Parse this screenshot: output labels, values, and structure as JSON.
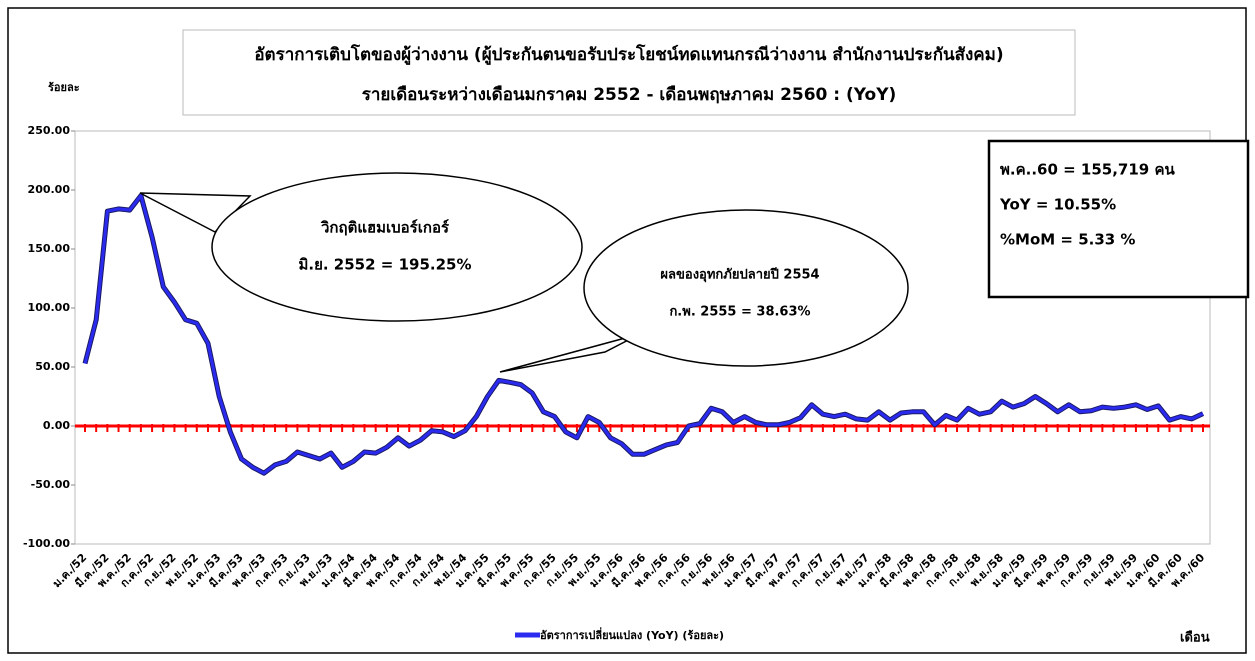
{
  "chart_data": {
    "type": "line",
    "title_lines": [
      "อัตราการเติบโตของผู้ว่างงาน (ผู้ประกันตนขอรับประโยชน์ทดแทนกรณีว่างงาน สำนักงานประกันสังคม)",
      "รายเดือนระหว่างเดือนมกราคม 2552 - เดือนพฤษภาคม 2560 : (YoY)"
    ],
    "y_label": "ร้อยละ",
    "x_label": "เดือน",
    "categories": [
      "ม.ค./52",
      null,
      "มี.ค./52",
      null,
      "พ.ค./52",
      null,
      "ก.ค./52",
      null,
      "ก.ย./52",
      null,
      "พ.ย./52",
      null,
      "ม.ค./53",
      null,
      "มี.ค./53",
      null,
      "พ.ค./53",
      null,
      "ก.ค./53",
      null,
      "ก.ย./53",
      null,
      "พ.ย./53",
      null,
      "ม.ค./54",
      null,
      "มี.ค./54",
      null,
      "พ.ค./54",
      null,
      "ก.ค./54",
      null,
      "ก.ย./54",
      null,
      "พ.ย./54",
      null,
      "ม.ค./55",
      null,
      "มี.ค./55",
      null,
      "พ.ค./55",
      null,
      "ก.ค./55",
      null,
      "ก.ย./55",
      null,
      "พ.ย./55",
      null,
      "ม.ค./56",
      null,
      "มี.ค./56",
      null,
      "พ.ค./56",
      null,
      "ก.ค./56",
      null,
      "ก.ย./56",
      null,
      "พ.ย./56",
      null,
      "ม.ค./57",
      null,
      "มี.ค./57",
      null,
      "พ.ค./57",
      null,
      "ก.ค./57",
      null,
      "ก.ย./57",
      null,
      "พ.ย./57",
      null,
      "ม.ค./58",
      null,
      "มี.ค./58",
      null,
      "พ.ค./58",
      null,
      "ก.ค./58",
      null,
      "ก.ย./58",
      null,
      "พ.ย./58",
      null,
      "ม.ค./59",
      null,
      "มี.ค./59",
      null,
      "พ.ค./59",
      null,
      "ก.ค./59",
      null,
      "ก.ย./59",
      null,
      "พ.ย./59",
      null,
      "ม.ค./60",
      null,
      "มี.ค./60",
      null,
      "พ.ค./60"
    ],
    "series": [
      {
        "name": "อัตราการเปลี่ยนแปลง (YoY) (ร้อยละ)",
        "color": "#2b2bf0",
        "values": [
          53,
          90,
          182,
          184,
          183,
          195.25,
          160,
          118,
          105,
          90,
          87,
          70,
          25,
          -5,
          -28,
          -35,
          -40,
          -33,
          -30,
          -22,
          -25,
          -28,
          -23,
          -35,
          -30,
          -22,
          -23,
          -18,
          -10,
          -17,
          -12,
          -4,
          -5,
          -9,
          -4,
          8,
          25,
          38.63,
          37,
          35,
          28,
          12,
          8,
          -5,
          -10,
          8,
          3,
          -10,
          -15,
          -24,
          -24,
          -20,
          -16,
          -14,
          0,
          2,
          15,
          12,
          3,
          8,
          3,
          1,
          1,
          3,
          7,
          18,
          10,
          8,
          10,
          6,
          5,
          12,
          5,
          11,
          12,
          12,
          1,
          9,
          5,
          15,
          10,
          12,
          21,
          16,
          19,
          25,
          19,
          12,
          18,
          12,
          13,
          16,
          15,
          16,
          18,
          14,
          17,
          5,
          8,
          6,
          10.55
        ]
      }
    ],
    "ylim": [
      -100,
      250
    ],
    "yticks": [
      {
        "value": -100,
        "label": "-100.00"
      },
      {
        "value": -50,
        "label": "-50.00"
      },
      {
        "value": 0,
        "label": "0.00"
      },
      {
        "value": 50,
        "label": "50.00"
      },
      {
        "value": 100,
        "label": "100.00"
      },
      {
        "value": 150,
        "label": "150.00"
      },
      {
        "value": 200,
        "label": "200.00"
      },
      {
        "value": 250,
        "label": "250.00"
      }
    ],
    "zero_line_color": "#ff0000",
    "annotations": [
      {
        "lines": [
          "วิกฤติแฮมเบอร์เกอร์",
          "มิ.ย. 2552 = 195.25%"
        ]
      },
      {
        "lines": [
          "ผลของอุทกภัยปลายปี 2554",
          "ก.พ. 2555 = 38.63%"
        ]
      }
    ],
    "info_box": [
      "พ.ค..60 = 155,719 คน",
      "YoY = 10.55%",
      "%MoM = 5.33 %"
    ]
  }
}
